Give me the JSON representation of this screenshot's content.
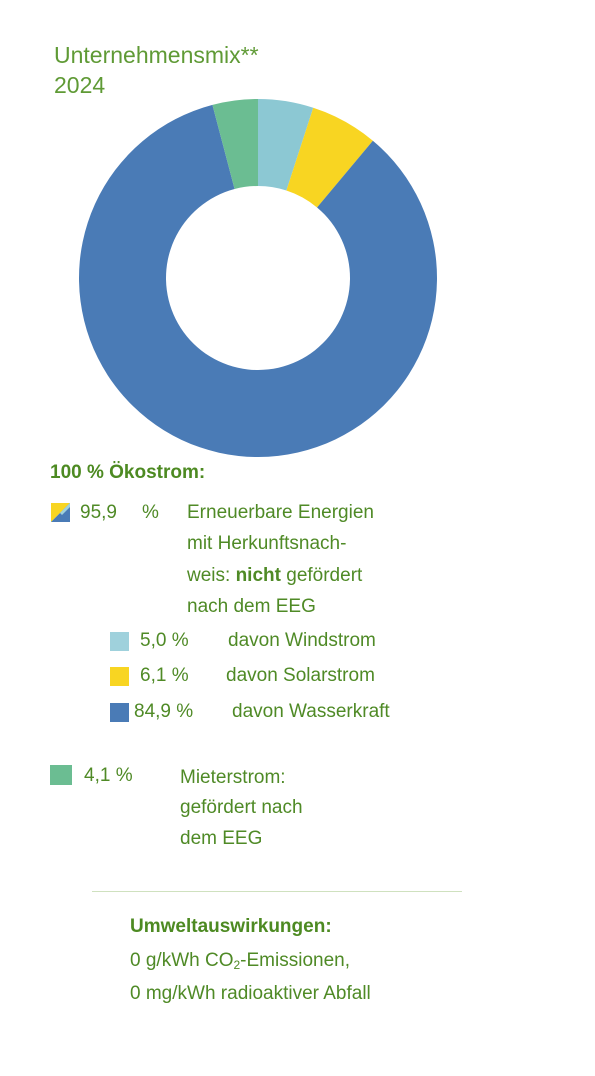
{
  "header": {
    "title_line1": "Unternehmensmix**",
    "title_line2": "2024"
  },
  "chart_data": {
    "type": "pie",
    "donut": true,
    "categories": [
      "Wind",
      "Solar",
      "Wasserkraft",
      "Mieterstrom"
    ],
    "values": [
      5.0,
      6.1,
      84.9,
      4.1
    ],
    "colors": [
      "#8cc8d3",
      "#f8d522",
      "#4a7bb6",
      "#6bbd92"
    ]
  },
  "legend": {
    "heading": "100 % Ökostrom:",
    "main": {
      "value": "95,9",
      "unit": "%",
      "text_line1": "Erneuerbare Energien",
      "text_line2": "mit Herkunftsnach-",
      "text_line3_a": "weis: ",
      "text_line3_bold": "nicht",
      "text_line3_b": " gefördert",
      "text_line4": "nach dem EEG"
    },
    "sub_items": [
      {
        "value": "5,0 %",
        "label": "davon Windstrom",
        "color": "#9fd1dc"
      },
      {
        "value": "6,1 %",
        "label": "davon Solarstrom",
        "color": "#f8d522"
      },
      {
        "value": "84,9 %",
        "label": "davon Wasserkraft",
        "color": "#4a7bb6"
      }
    ],
    "mieter": {
      "value": "4,1 %",
      "text_line1": "Mieterstrom:",
      "text_line2": "gefördert nach",
      "text_line3": "dem EEG",
      "color": "#6bbd92"
    }
  },
  "environment": {
    "heading": "Umweltauswirkungen:",
    "line1_a": "0 g/kWh CO",
    "line1_sub": "2",
    "line1_b": "-Emissionen,",
    "line2": "0 mg/kWh radioaktiver Abfall"
  }
}
